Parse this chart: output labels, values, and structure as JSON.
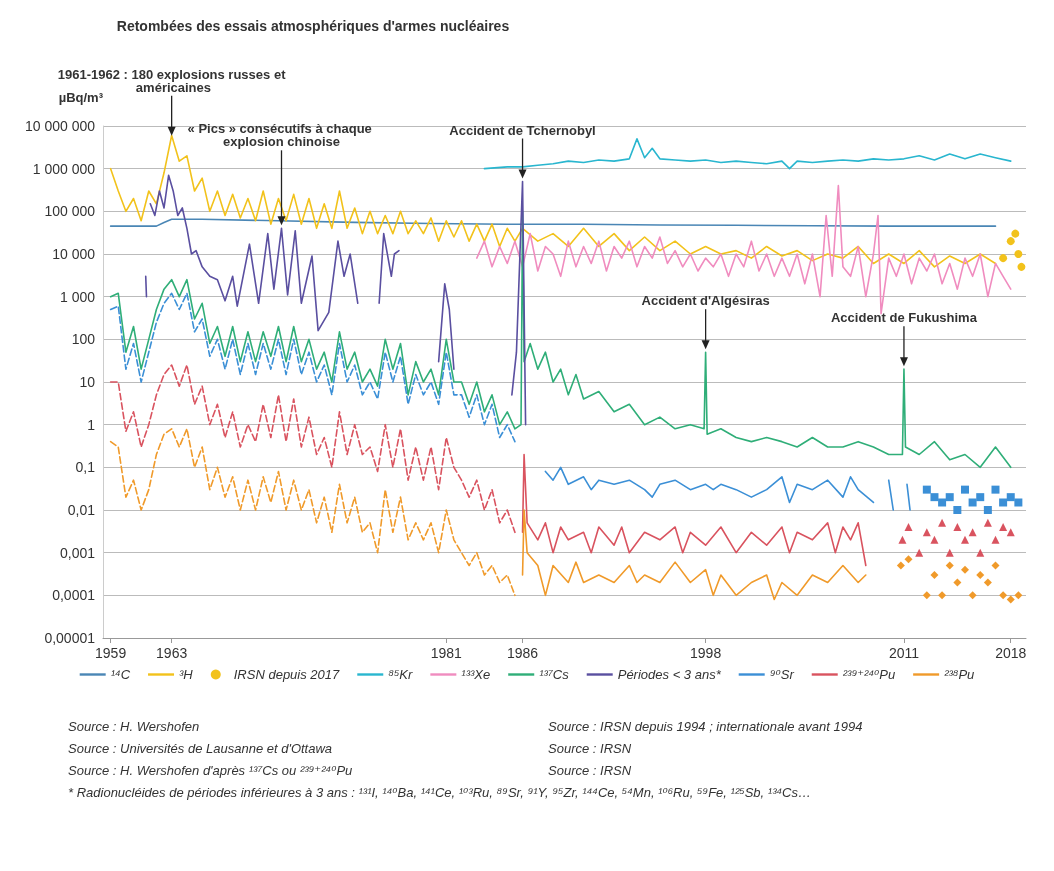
{
  "chart_data": {
    "type": "line",
    "title": "Retombées des essais atmosphériques d'armes nucléaires",
    "ylabel": "µBq/m³",
    "x": [
      1959,
      1959.5,
      1960,
      1960.5,
      1961,
      1961.5,
      1962,
      1962.5,
      1963,
      1963.5,
      1964,
      1964.5,
      1965,
      1965.5,
      1966,
      1966.5,
      1967,
      1967.5,
      1968,
      1968.5,
      1969,
      1969.5,
      1970,
      1970.5,
      1971,
      1971.5,
      1972,
      1972.5,
      1973,
      1973.5,
      1974,
      1974.5,
      1975,
      1975.5,
      1976,
      1976.5,
      1977,
      1977.5,
      1978,
      1978.5,
      1979,
      1979.5,
      1980,
      1980.5,
      1981,
      1981.5,
      1982,
      1982.5,
      1983,
      1983.5,
      1984,
      1984.5,
      1985,
      1985.5
    ],
    "xlim": [
      1958.5,
      2019
    ],
    "xticks": [
      1959,
      1963,
      1981,
      1986,
      1998,
      2011,
      2018
    ],
    "ylim": [
      1e-05,
      10000000
    ],
    "yticks": [
      {
        "value": 1e-05,
        "label": "0,00001"
      },
      {
        "value": 0.0001,
        "label": "0,0001"
      },
      {
        "value": 0.001,
        "label": "0,001"
      },
      {
        "value": 0.01,
        "label": "0,01"
      },
      {
        "value": 0.1,
        "label": "0,1"
      },
      1,
      10,
      100,
      {
        "value": 1000,
        "label": "1 000"
      },
      {
        "value": 10000,
        "label": "10 000"
      },
      {
        "value": 100000,
        "label": "100 000"
      },
      {
        "value": 1000000,
        "label": "1 000 000"
      },
      {
        "value": 10000000,
        "label": "10 000 000"
      }
    ],
    "log": "y",
    "grid": "y",
    "legend": "bottom",
    "marker": "none",
    "line_style": "solid",
    "series": [
      {
        "name": "¹⁴C",
        "color": "#4a86b5",
        "x": [
          1959,
          1962,
          1962.5,
          1963,
          1965,
          1970,
          1975,
          1980,
          1985,
          1990,
          1995,
          2000,
          2005,
          2010,
          2017
        ],
        "values": [
          45000,
          45000,
          55000,
          65000,
          65000,
          60000,
          55000,
          52000,
          50000,
          50000,
          48000,
          47000,
          46000,
          45000,
          45000
        ]
      },
      {
        "name": "³H",
        "color": "#f2c21b",
        "x": [
          1959,
          1959.5,
          1960,
          1960.5,
          1961,
          1961.5,
          1962,
          1962.5,
          1963,
          1963.5,
          1964,
          1964.5,
          1965,
          1965.5,
          1966,
          1966.5,
          1967,
          1967.5,
          1968,
          1968.5,
          1969,
          1969.5,
          1970,
          1970.5,
          1971,
          1971.5,
          1972,
          1972.5,
          1973,
          1973.5,
          1974,
          1974.5,
          1975,
          1975.5,
          1976,
          1976.5,
          1977,
          1977.5,
          1978,
          1978.5,
          1979,
          1979.5,
          1980,
          1980.5,
          1981,
          1981.5,
          1982,
          1982.5,
          1983,
          1983.5,
          1984,
          1984.5,
          1985,
          1985.5,
          1986,
          1987,
          1988,
          1989,
          1990,
          1991,
          1992,
          1993,
          1994,
          1995,
          1996,
          1997,
          1998,
          1999,
          2000,
          2001,
          2002,
          2003,
          2004,
          2005,
          2006,
          2007,
          2008,
          2009,
          2010,
          2011,
          2012,
          2013,
          2014,
          2015,
          2016,
          2017
        ],
        "values": [
          1000000,
          300000,
          100000,
          200000,
          60000,
          300000,
          150000,
          800000,
          6000000,
          1500000,
          2000000,
          300000,
          600000,
          100000,
          300000,
          80000,
          250000,
          70000,
          200000,
          60000,
          300000,
          50000,
          200000,
          60000,
          250000,
          50000,
          200000,
          40000,
          150000,
          40000,
          300000,
          40000,
          120000,
          30000,
          100000,
          30000,
          80000,
          30000,
          100000,
          30000,
          60000,
          30000,
          70000,
          20000,
          60000,
          25000,
          60000,
          20000,
          50000,
          20000,
          50000,
          15000,
          40000,
          20000,
          40000,
          20000,
          30000,
          15000,
          40000,
          15000,
          30000,
          12000,
          25000,
          12000,
          20000,
          10000,
          15000,
          10000,
          12000,
          8000,
          15000,
          9000,
          12000,
          7000,
          10000,
          8000,
          15000,
          6000,
          10000,
          6000,
          12000,
          5000,
          9000,
          6000,
          10000,
          6000
        ]
      },
      {
        "name": "IRSN depuis 2017",
        "type": "scatter",
        "marker": "circle",
        "color": "#f2c21b",
        "x": [
          2017.5,
          2018,
          2018.3,
          2018.5,
          2018.7
        ],
        "values": [
          8000,
          20000,
          30000,
          10000,
          5000
        ]
      },
      {
        "name": "⁸⁵Kr",
        "color": "#29b6cf",
        "x": [
          1983.5,
          1985,
          1986,
          1987,
          1988,
          1989,
          1990,
          1991,
          1992,
          1993,
          1993.5,
          1994,
          1994.5,
          1995,
          1996,
          1997,
          1998,
          1999,
          2000,
          2001,
          2002,
          2003,
          2003.5,
          2004,
          2005,
          2006,
          2007,
          2008,
          2009,
          2010,
          2011,
          2012,
          2013,
          2014,
          2015,
          2016,
          2017,
          2018
        ],
        "values": [
          1000000,
          1100000,
          1100000,
          1200000,
          1300000,
          1500000,
          1400000,
          1600000,
          1500000,
          1700000,
          5000000,
          1800000,
          3000000,
          1700000,
          1600000,
          1500000,
          1600000,
          1400000,
          1500000,
          1400000,
          1300000,
          1500000,
          1000000,
          1500000,
          1400000,
          1500000,
          1600000,
          1500000,
          1700000,
          1600000,
          1700000,
          2000000,
          1600000,
          2200000,
          1700000,
          2200000,
          1800000,
          1500000
        ]
      },
      {
        "name": "¹³³Xe",
        "color": "#f08cbf",
        "x": [
          1983,
          1983.5,
          1984,
          1984.5,
          1985,
          1985.5,
          1986,
          1986.5,
          1987,
          1987.5,
          1988,
          1988.5,
          1989,
          1989.5,
          1990,
          1990.5,
          1991,
          1991.5,
          1992,
          1992.5,
          1993,
          1993.5,
          1994,
          1994.5,
          1995,
          1995.5,
          1996,
          1996.5,
          1997,
          1997.5,
          1998,
          1998.5,
          1999,
          1999.5,
          2000,
          2000.5,
          2001,
          2001.5,
          2002,
          2002.5,
          2003,
          2003.5,
          2004,
          2004.5,
          2005,
          2005.5,
          2005.9,
          2006.3,
          2006.7,
          2007,
          2007.5,
          2008,
          2008.5,
          2009,
          2009.3,
          2009.5,
          2010,
          2010.5,
          2011,
          2011.5,
          2012,
          2012.5,
          2013,
          2013.5,
          2014,
          2014.5,
          2015,
          2015.5,
          2016,
          2016.5,
          2017,
          2017.5,
          2018
        ],
        "values": [
          8000,
          20000,
          5000,
          15000,
          6000,
          20000,
          5000,
          30000,
          4000,
          15000,
          10000,
          3000,
          20000,
          5000,
          15000,
          6000,
          20000,
          4000,
          15000,
          8000,
          20000,
          5000,
          15000,
          8000,
          25000,
          6000,
          12000,
          5000,
          10000,
          4000,
          8000,
          5000,
          10000,
          3000,
          10000,
          5000,
          20000,
          4000,
          10000,
          3000,
          8000,
          3000,
          10000,
          2000,
          10000,
          1000,
          80000,
          3000,
          400000,
          5000,
          3000,
          15000,
          1000,
          10000,
          80000,
          400,
          8000,
          3000,
          10000,
          2000,
          8000,
          4000,
          10000,
          2000,
          6000,
          1500,
          8000,
          3000,
          10000,
          1000,
          6000,
          3000,
          1500
        ]
      },
      {
        "name": "¹³⁷Cs",
        "color": "#2fae78",
        "x": [
          1959,
          1959.5,
          1960,
          1960.5,
          1961,
          1961.5,
          1962,
          1962.5,
          1963,
          1963.5,
          1964,
          1964.5,
          1965,
          1965.5,
          1966,
          1966.5,
          1967,
          1967.5,
          1968,
          1968.5,
          1969,
          1969.5,
          1970,
          1970.5,
          1971,
          1971.5,
          1972,
          1972.5,
          1973,
          1973.5,
          1974,
          1974.5,
          1975,
          1975.5,
          1976,
          1976.5,
          1977,
          1977.5,
          1978,
          1978.5,
          1979,
          1979.5,
          1980,
          1980.5,
          1981,
          1981.5,
          1982,
          1982.5,
          1983,
          1983.5,
          1984,
          1984.5,
          1985,
          1985.5,
          1985.9,
          1986,
          1986.1,
          1986.5,
          1987,
          1987.5,
          1988,
          1988.5,
          1989,
          1989.5,
          1990,
          1991,
          1992,
          1993,
          1994,
          1995,
          1996,
          1997,
          1997.9,
          1998,
          1998.1,
          1999,
          2000,
          2001,
          2002,
          2003,
          2004,
          2005,
          2006,
          2007,
          2008,
          2009,
          2010,
          2010.9,
          2011,
          2011.1,
          2012,
          2013,
          2014,
          2015,
          2016,
          2017,
          2018
        ],
        "values": [
          1000,
          1200,
          50,
          200,
          20,
          100,
          500,
          1500,
          2500,
          1000,
          2500,
          300,
          700,
          80,
          200,
          40,
          200,
          30,
          150,
          30,
          150,
          40,
          200,
          30,
          200,
          30,
          100,
          20,
          50,
          10,
          150,
          20,
          50,
          10,
          20,
          8,
          100,
          20,
          80,
          5,
          30,
          10,
          20,
          5,
          100,
          10,
          10,
          3,
          10,
          2,
          5,
          1,
          2,
          0.8,
          1,
          100000,
          30,
          80,
          20,
          50,
          10,
          20,
          5,
          15,
          4,
          6,
          2,
          3,
          1,
          1.5,
          0.8,
          1,
          0.8,
          50,
          0.6,
          0.8,
          0.5,
          0.4,
          0.5,
          0.4,
          0.3,
          0.5,
          0.3,
          0.3,
          0.4,
          0.3,
          0.2,
          0.2,
          20,
          0.3,
          0.2,
          0.4,
          0.15,
          0.2,
          0.1,
          0.3,
          0.1
        ]
      },
      {
        "name": "Périodes < 3 ans*",
        "color": "#5a4fa0",
        "x": [
          1961.3,
          1961.35,
          1961.45,
          1961.6,
          1961.9,
          1962.2,
          1962.5,
          1962.8,
          1963.1,
          1963.4,
          1963.7,
          1964,
          1964.3,
          1964.6,
          1965,
          1965.5,
          1966,
          1966.5,
          1967,
          1967.3,
          1968.1,
          1968.7,
          1969.3,
          1969.7,
          1970.2,
          1970.6,
          1971.1,
          1971.5,
          1972.2,
          1972.6,
          1973.3,
          1973.9,
          1974.3,
          1974.7,
          1975.2,
          1975.4,
          1976.6,
          1976.9,
          1977.4,
          1977.6,
          1977.9,
          1978,
          1980.5,
          1980.9,
          1981.2,
          1981.5,
          1981.8,
          1985.3,
          1985.6,
          1986,
          1986.2
        ],
        "values": [
          3000,
          1000,
          null,
          150000,
          80000,
          300000,
          120000,
          700000,
          300000,
          80000,
          120000,
          40000,
          10000,
          12000,
          5000,
          3000,
          2500,
          800,
          3000,
          600,
          17000,
          700,
          30000,
          1500,
          40000,
          1100,
          35000,
          700,
          9000,
          160,
          430,
          20000,
          3000,
          10000,
          700,
          null,
          700,
          30000,
          3000,
          10000,
          12000,
          null,
          30,
          2000,
          500,
          20,
          null,
          5,
          50,
          500000,
          1
        ]
      },
      {
        "name": "⁹⁰Sr",
        "color": "#3b8fd6",
        "x": [
          1987.5,
          1988,
          1988.5,
          1989,
          1990,
          1990.5,
          1991,
          1992,
          1993,
          1994,
          1994.5,
          1995,
          1996,
          1997,
          1998,
          1998.5,
          1999,
          2000,
          2001,
          2002,
          2003,
          2003.5,
          2004,
          2005,
          2006,
          2007,
          2007.5,
          2008,
          2009,
          2009.2,
          2010,
          2010.3,
          2010.5,
          2011.2,
          2011.4
        ],
        "values": [
          0.08,
          0.05,
          0.1,
          0.04,
          0.06,
          0.03,
          0.05,
          0.04,
          0.05,
          0.03,
          0.02,
          0.04,
          0.05,
          0.03,
          0.04,
          0.03,
          0.04,
          0.03,
          0.02,
          0.03,
          0.06,
          0.015,
          0.04,
          0.03,
          0.05,
          0.02,
          0.06,
          0.03,
          0.015,
          null,
          0.05,
          0.01,
          null,
          0.04,
          0.01
        ]
      },
      {
        "color": "#3b8fd6",
        "line_style": "dashed",
        "values": [
          500,
          600,
          20,
          80,
          10,
          50,
          250,
          700,
          1200,
          500,
          1200,
          150,
          300,
          40,
          100,
          20,
          100,
          15,
          80,
          15,
          80,
          20,
          100,
          15,
          100,
          15,
          50,
          10,
          25,
          5,
          80,
          10,
          25,
          5,
          10,
          4,
          50,
          10,
          40,
          3,
          15,
          5,
          10,
          3,
          50,
          5,
          5,
          1.5,
          5,
          1,
          3,
          0.5,
          1,
          0.4
        ]
      },
      {
        "color": "#3b8fd6",
        "type": "scatter",
        "marker": "square",
        "x": [
          2012.5,
          2013,
          2013.5,
          2014,
          2014.5,
          2015,
          2015.5,
          2016,
          2016.5,
          2017,
          2017.5,
          2018,
          2018.5
        ],
        "values": [
          0.03,
          0.02,
          0.015,
          0.02,
          0.01,
          0.03,
          0.015,
          0.02,
          0.01,
          0.03,
          0.015,
          0.02,
          0.015
        ]
      },
      {
        "name": "²³⁹⁺²⁴⁰Pu",
        "color": "#d9535f",
        "x": [
          1986,
          1986.1,
          1986.3,
          1987,
          1987.5,
          1988,
          1988.5,
          1989,
          1990,
          1990.5,
          1991,
          1992,
          1992.5,
          1993,
          1994,
          1995,
          1996,
          1996.5,
          1997,
          1998,
          1999,
          2000,
          2001,
          2002,
          2003,
          2003.5,
          2004,
          2005,
          2006,
          2006.5,
          2007,
          2007.5,
          2008,
          2008.5
        ],
        "values": [
          0.003,
          0.2,
          0.005,
          0.002,
          0.005,
          0.001,
          0.004,
          0.002,
          0.003,
          0.001,
          0.004,
          0.0015,
          0.004,
          0.001,
          0.003,
          0.002,
          0.004,
          0.001,
          0.003,
          0.0015,
          0.004,
          0.001,
          0.003,
          0.0015,
          0.004,
          0.001,
          0.003,
          0.002,
          0.005,
          0.001,
          0.004,
          0.002,
          0.005,
          0.0005
        ]
      },
      {
        "color": "#d9535f",
        "line_style": "dashed",
        "values": [
          10,
          10,
          0.7,
          2,
          0.3,
          1,
          5,
          15,
          25,
          8,
          25,
          3,
          8,
          1,
          3,
          0.5,
          2,
          0.3,
          1,
          0.4,
          3,
          0.5,
          5,
          0.4,
          4,
          0.3,
          1.5,
          0.2,
          0.5,
          0.1,
          2,
          0.2,
          1,
          0.2,
          0.3,
          0.08,
          1,
          0.1,
          0.8,
          0.05,
          0.3,
          0.05,
          0.3,
          0.03,
          0.5,
          0.1,
          0.05,
          0.02,
          0.05,
          0.01,
          0.03,
          0.005,
          0.01,
          0.003
        ]
      },
      {
        "color": "#d9535f",
        "type": "scatter",
        "marker": "triangle",
        "x": [
          2010.9,
          2011.3,
          2012,
          2012.5,
          2013,
          2013.5,
          2014,
          2014.5,
          2015,
          2015.5,
          2016,
          2016.5,
          2017,
          2017.5,
          2018
        ],
        "values": [
          0.002,
          0.004,
          0.001,
          0.003,
          0.002,
          0.005,
          0.001,
          0.004,
          0.002,
          0.003,
          0.001,
          0.005,
          0.002,
          0.004,
          0.003
        ]
      },
      {
        "name": "²³⁸Pu",
        "color": "#f09a2a",
        "x": [
          1986,
          1986.1,
          1986.3,
          1987,
          1987.5,
          1988,
          1989,
          1989.5,
          1990,
          1991,
          1992,
          1993,
          1993.5,
          1994,
          1995,
          1996,
          1997,
          1998,
          1998.5,
          1999,
          2000,
          2001,
          2002,
          2002.5,
          2003,
          2004,
          2005,
          2006,
          2007,
          2008,
          2008.5
        ],
        "values": [
          0.0003,
          0.01,
          0.001,
          0.0005,
          0.0001,
          0.0005,
          0.0002,
          0.0006,
          0.0002,
          0.0003,
          0.0002,
          0.0005,
          0.0002,
          0.0003,
          0.0002,
          0.0006,
          0.0002,
          0.0004,
          0.0001,
          0.0003,
          0.0001,
          0.0002,
          0.0003,
          8e-05,
          0.0002,
          0.0001,
          0.0003,
          0.0002,
          0.0005,
          0.0002,
          0.0003
        ]
      },
      {
        "color": "#f09a2a",
        "line_style": "dashed",
        "values": [
          0.4,
          0.3,
          0.02,
          0.05,
          0.01,
          0.03,
          0.2,
          0.6,
          0.8,
          0.3,
          0.8,
          0.1,
          0.3,
          0.03,
          0.1,
          0.02,
          0.06,
          0.01,
          0.05,
          0.01,
          0.06,
          0.015,
          0.08,
          0.01,
          0.05,
          0.01,
          0.03,
          0.005,
          0.02,
          0.003,
          0.04,
          0.005,
          0.02,
          0.003,
          0.005,
          0.001,
          0.03,
          0.003,
          0.02,
          0.002,
          0.005,
          0.002,
          0.005,
          0.001,
          0.01,
          0.002,
          0.001,
          0.0005,
          0.001,
          0.0003,
          0.0005,
          0.0002,
          0.0003,
          0.0001
        ]
      },
      {
        "color": "#f09a2a",
        "type": "scatter",
        "marker": "diamond",
        "x": [
          2010.8,
          2011.3,
          2012.5,
          2013,
          2013.5,
          2014,
          2014.5,
          2015,
          2015.5,
          2016,
          2016.5,
          2017,
          2017.5,
          2018,
          2018.5
        ],
        "values": [
          0.0005,
          0.0007,
          0.0001,
          0.0003,
          0.0001,
          0.0005,
          0.0002,
          0.0004,
          0.0001,
          0.0003,
          0.0002,
          0.0005,
          0.0001,
          8e-05,
          0.0001
        ]
      }
    ],
    "annotations": [
      {
        "text": "1961-1962 : 180 explosions russes et américaines",
        "x": 1963,
        "y": 5000000
      },
      {
        "text": "« Pics » consécutifs à chaque explosion chinoise",
        "x": 1970.2,
        "y": 40000
      },
      {
        "text": "Accident de Tchernobyl",
        "x": 1986,
        "y": 500000
      },
      {
        "text": "Accident d'Algésiras",
        "x": 1998,
        "y": 50
      },
      {
        "text": "Accident de Fukushima",
        "x": 2011,
        "y": 20
      },
      "Source : H. Wershofen",
      "Source : IRSN depuis 1994 ; internationale avant 1994",
      "Source : Universités de Lausanne et d'Ottawa",
      "Source : IRSN",
      "Source : H. Wershofen d'après ¹³⁷Cs ou ²³⁹⁺²⁴⁰Pu",
      "Source : IRSN",
      "* Radionucléides de périodes inférieures à 3 ans : ¹³¹I, ¹⁴⁰Ba, ¹⁴¹Ce, ¹⁰³Ru, ⁸⁹Sr, ⁹¹Y, ⁹⁵Zr, ¹⁴⁴Ce, ⁵⁴Mn, ¹⁰⁶Ru, ⁵⁹Fe, ¹²⁵Sb, ¹³⁴Cs…"
    ]
  }
}
